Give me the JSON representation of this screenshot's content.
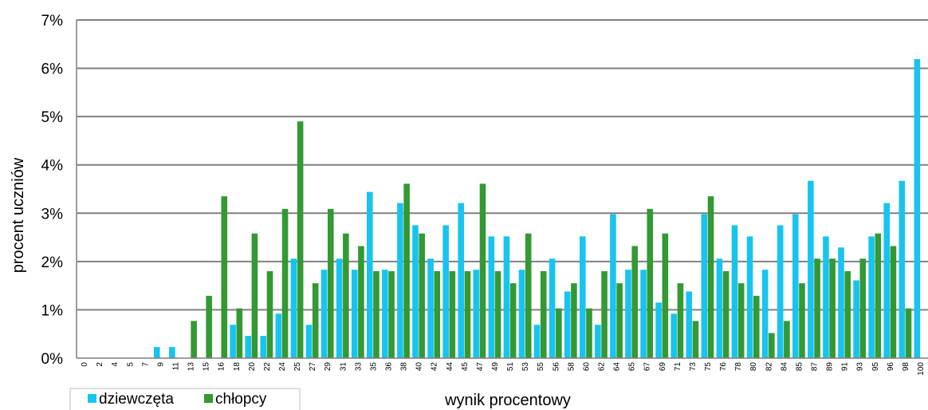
{
  "colors": {
    "girls": "#17C4F0",
    "boys": "#339933",
    "grid": "#808080",
    "axis": "#7f7f7f"
  },
  "chart_data": {
    "type": "bar",
    "title": "",
    "xlabel": "wynik procentowy",
    "ylabel": "procent uczniów",
    "ylim": [
      0,
      7
    ],
    "yticks": [
      "0%",
      "1%",
      "2%",
      "3%",
      "4%",
      "5%",
      "6%",
      "7%"
    ],
    "grid": true,
    "legend_position": "bottom-left",
    "categories": [
      "0",
      "2",
      "4",
      "5",
      "7",
      "9",
      "11",
      "13",
      "15",
      "16",
      "18",
      "20",
      "22",
      "24",
      "25",
      "27",
      "29",
      "31",
      "33",
      "35",
      "36",
      "38",
      "40",
      "42",
      "44",
      "45",
      "47",
      "49",
      "51",
      "53",
      "55",
      "56",
      "58",
      "60",
      "62",
      "64",
      "65",
      "67",
      "69",
      "71",
      "73",
      "75",
      "76",
      "78",
      "80",
      "82",
      "84",
      "85",
      "87",
      "89",
      "91",
      "93",
      "95",
      "96",
      "98",
      "100"
    ],
    "series": [
      {
        "name": "dziewczęta",
        "values": [
          0,
          0,
          0,
          0,
          0,
          0.23,
          0.23,
          0,
          0,
          0,
          0.69,
          0.46,
          0.46,
          0.92,
          2.06,
          0.69,
          1.83,
          2.06,
          1.83,
          3.44,
          1.83,
          3.21,
          2.75,
          2.06,
          2.75,
          3.21,
          1.83,
          2.52,
          2.52,
          1.83,
          0.69,
          2.06,
          1.38,
          2.52,
          0.69,
          2.98,
          1.83,
          1.83,
          1.15,
          0.92,
          1.38,
          2.98,
          2.06,
          2.75,
          2.52,
          1.83,
          2.75,
          2.98,
          3.67,
          2.52,
          2.29,
          1.61,
          2.52,
          3.21,
          3.67,
          6.19
        ]
      },
      {
        "name": "chłopcy",
        "values": [
          0,
          0,
          0,
          0,
          0,
          0,
          0,
          0.77,
          1.29,
          3.35,
          1.03,
          2.58,
          1.8,
          3.09,
          4.9,
          1.55,
          3.09,
          2.58,
          2.32,
          1.8,
          1.8,
          3.61,
          2.58,
          1.8,
          1.8,
          1.8,
          3.61,
          1.8,
          1.55,
          2.58,
          1.8,
          1.03,
          1.55,
          1.03,
          1.8,
          1.55,
          2.32,
          3.09,
          2.58,
          1.55,
          0.77,
          3.35,
          1.8,
          1.55,
          1.29,
          0.52,
          0.77,
          1.55,
          2.06,
          2.06,
          1.8,
          2.06,
          2.58,
          2.32,
          1.03,
          0
        ]
      }
    ]
  }
}
